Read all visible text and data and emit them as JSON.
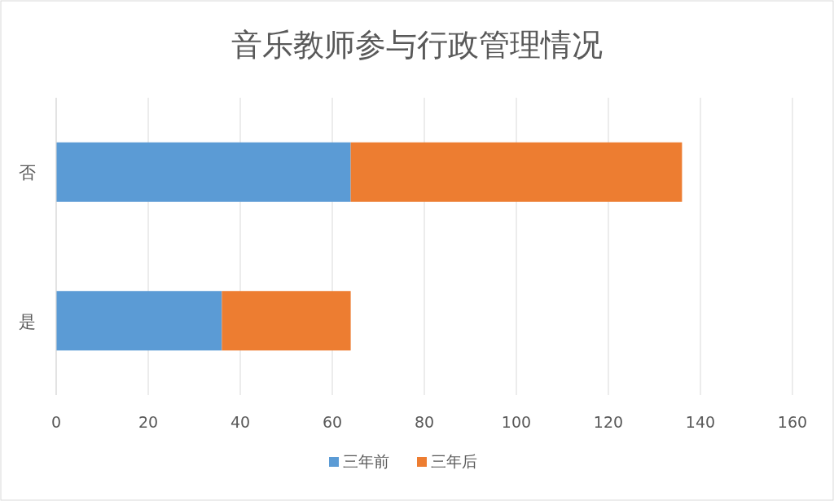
{
  "chart_data": {
    "type": "bar",
    "title": "音乐教师参与行政管理情况",
    "orientation": "horizontal",
    "stacked": true,
    "categories": [
      "否",
      "是"
    ],
    "series": [
      {
        "name": "三年前",
        "color": "#5b9bd5",
        "values": [
          64,
          36
        ]
      },
      {
        "name": "三年后",
        "color": "#ed7d31",
        "values": [
          72,
          28
        ]
      }
    ],
    "xlim": [
      0,
      160
    ],
    "xticks": [
      0,
      20,
      40,
      60,
      80,
      100,
      120,
      140,
      160
    ],
    "grid": "x",
    "legend": "bottom"
  }
}
